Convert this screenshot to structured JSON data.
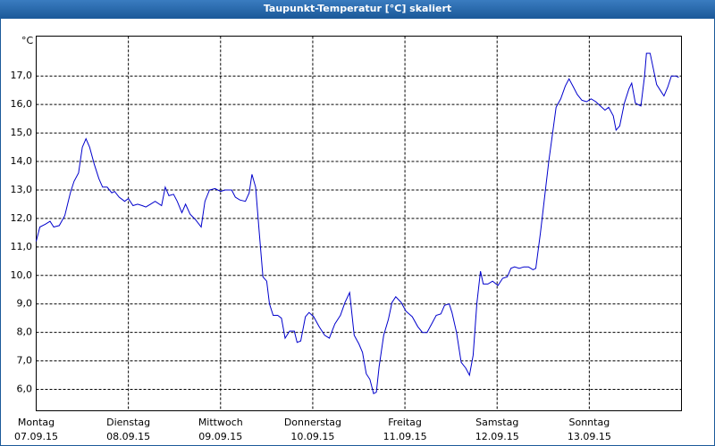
{
  "chart_data": {
    "type": "line",
    "title": "Taupunkt-Temperatur [°C] skaliert",
    "y_unit": "°C",
    "xlim": [
      0,
      7
    ],
    "ylim": [
      5.25,
      18.4
    ],
    "grid": true,
    "xticks": [
      {
        "value": 0,
        "label": "Montag",
        "date": "07.09.15"
      },
      {
        "value": 1,
        "label": "Dienstag",
        "date": "08.09.15"
      },
      {
        "value": 2,
        "label": "Mittwoch",
        "date": "09.09.15"
      },
      {
        "value": 3,
        "label": "Donnerstag",
        "date": "10.09.15"
      },
      {
        "value": 4,
        "label": "Freitag",
        "date": "11.09.15"
      },
      {
        "value": 5,
        "label": "Samstag",
        "date": "12.09.15"
      },
      {
        "value": 6,
        "label": "Sonntag",
        "date": "13.09.15"
      }
    ],
    "yticks": [
      {
        "value": 6,
        "label": "6,0"
      },
      {
        "value": 7,
        "label": "7,0"
      },
      {
        "value": 8,
        "label": "8,0"
      },
      {
        "value": 9,
        "label": "9,0"
      },
      {
        "value": 10,
        "label": "10,0"
      },
      {
        "value": 11,
        "label": "11,0"
      },
      {
        "value": 12,
        "label": "12,0"
      },
      {
        "value": 13,
        "label": "13,0"
      },
      {
        "value": 14,
        "label": "14,0"
      },
      {
        "value": 15,
        "label": "15,0"
      },
      {
        "value": 16,
        "label": "16,0"
      },
      {
        "value": 17,
        "label": "17,0"
      }
    ],
    "x": [
      0,
      0.04,
      0.1,
      0.15,
      0.19,
      0.25,
      0.31,
      0.37,
      0.41,
      0.46,
      0.5,
      0.54,
      0.58,
      0.63,
      0.68,
      0.72,
      0.77,
      0.82,
      0.85,
      0.9,
      0.96,
      1.0,
      1.05,
      1.1,
      1.15,
      1.19,
      1.24,
      1.29,
      1.36,
      1.4,
      1.44,
      1.49,
      1.53,
      1.58,
      1.62,
      1.67,
      1.73,
      1.79,
      1.83,
      1.88,
      1.94,
      2.0,
      2.05,
      2.12,
      2.16,
      2.21,
      2.27,
      2.31,
      2.34,
      2.38,
      2.42,
      2.46,
      2.5,
      2.53,
      2.57,
      2.62,
      2.66,
      2.7,
      2.75,
      2.8,
      2.83,
      2.87,
      2.92,
      2.96,
      3.01,
      3.07,
      3.13,
      3.18,
      3.24,
      3.3,
      3.35,
      3.4,
      3.45,
      3.5,
      3.54,
      3.58,
      3.62,
      3.66,
      3.69,
      3.72,
      3.77,
      3.82,
      3.86,
      3.9,
      3.96,
      4.01,
      4.08,
      4.14,
      4.19,
      4.24,
      4.29,
      4.34,
      4.39,
      4.43,
      4.48,
      4.51,
      4.56,
      4.61,
      4.66,
      4.7,
      4.74,
      4.78,
      4.82,
      4.85,
      4.9,
      4.95,
      5.01,
      5.06,
      5.11,
      5.15,
      5.19,
      5.24,
      5.29,
      5.34,
      5.39,
      5.42,
      5.47,
      5.51,
      5.56,
      5.6,
      5.64,
      5.69,
      5.74,
      5.78,
      5.83,
      5.87,
      5.92,
      5.97,
      6.02,
      6.07,
      6.12,
      6.17,
      6.21,
      6.26,
      6.29,
      6.33,
      6.38,
      6.43,
      6.46,
      6.5,
      6.56,
      6.6,
      6.62,
      6.66,
      6.73,
      6.78,
      6.81,
      6.85,
      6.89,
      6.94,
      6.97
    ],
    "series": [
      {
        "color": "#0000cc",
        "values": [
          11.2,
          11.7,
          11.8,
          11.9,
          11.7,
          11.75,
          12.1,
          12.9,
          13.3,
          13.6,
          14.5,
          14.8,
          14.5,
          13.9,
          13.4,
          13.1,
          13.1,
          12.9,
          12.95,
          12.75,
          12.6,
          12.7,
          12.45,
          12.5,
          12.45,
          12.4,
          12.5,
          12.6,
          12.45,
          13.1,
          12.8,
          12.85,
          12.6,
          12.2,
          12.5,
          12.15,
          11.95,
          11.7,
          12.6,
          13.0,
          13.05,
          12.95,
          13.0,
          13.0,
          12.75,
          12.65,
          12.6,
          12.9,
          13.55,
          13.1,
          11.5,
          9.95,
          9.8,
          9.0,
          8.6,
          8.6,
          8.5,
          7.8,
          8.05,
          8.05,
          7.65,
          7.7,
          8.55,
          8.7,
          8.55,
          8.2,
          7.9,
          7.8,
          8.3,
          8.6,
          9.05,
          9.4,
          7.9,
          7.6,
          7.3,
          6.55,
          6.35,
          5.85,
          5.9,
          6.8,
          7.9,
          8.45,
          9.05,
          9.25,
          9.05,
          8.75,
          8.55,
          8.2,
          8.0,
          8.0,
          8.3,
          8.6,
          8.65,
          8.95,
          9.0,
          8.7,
          8.0,
          6.95,
          6.75,
          6.5,
          7.2,
          9.0,
          10.15,
          9.7,
          9.7,
          9.8,
          9.65,
          9.9,
          9.95,
          10.25,
          10.3,
          10.25,
          10.3,
          10.3,
          10.2,
          10.25,
          11.5,
          12.6,
          14.0,
          14.95,
          15.9,
          16.2,
          16.65,
          16.9,
          16.6,
          16.35,
          16.15,
          16.1,
          16.2,
          16.1,
          15.95,
          15.8,
          15.9,
          15.6,
          15.1,
          15.25,
          16.05,
          16.55,
          16.75,
          16.05,
          15.95,
          17.0,
          17.8,
          17.8,
          16.7,
          16.45,
          16.3,
          16.6,
          17.0,
          17.0,
          16.95
        ]
      }
    ]
  }
}
